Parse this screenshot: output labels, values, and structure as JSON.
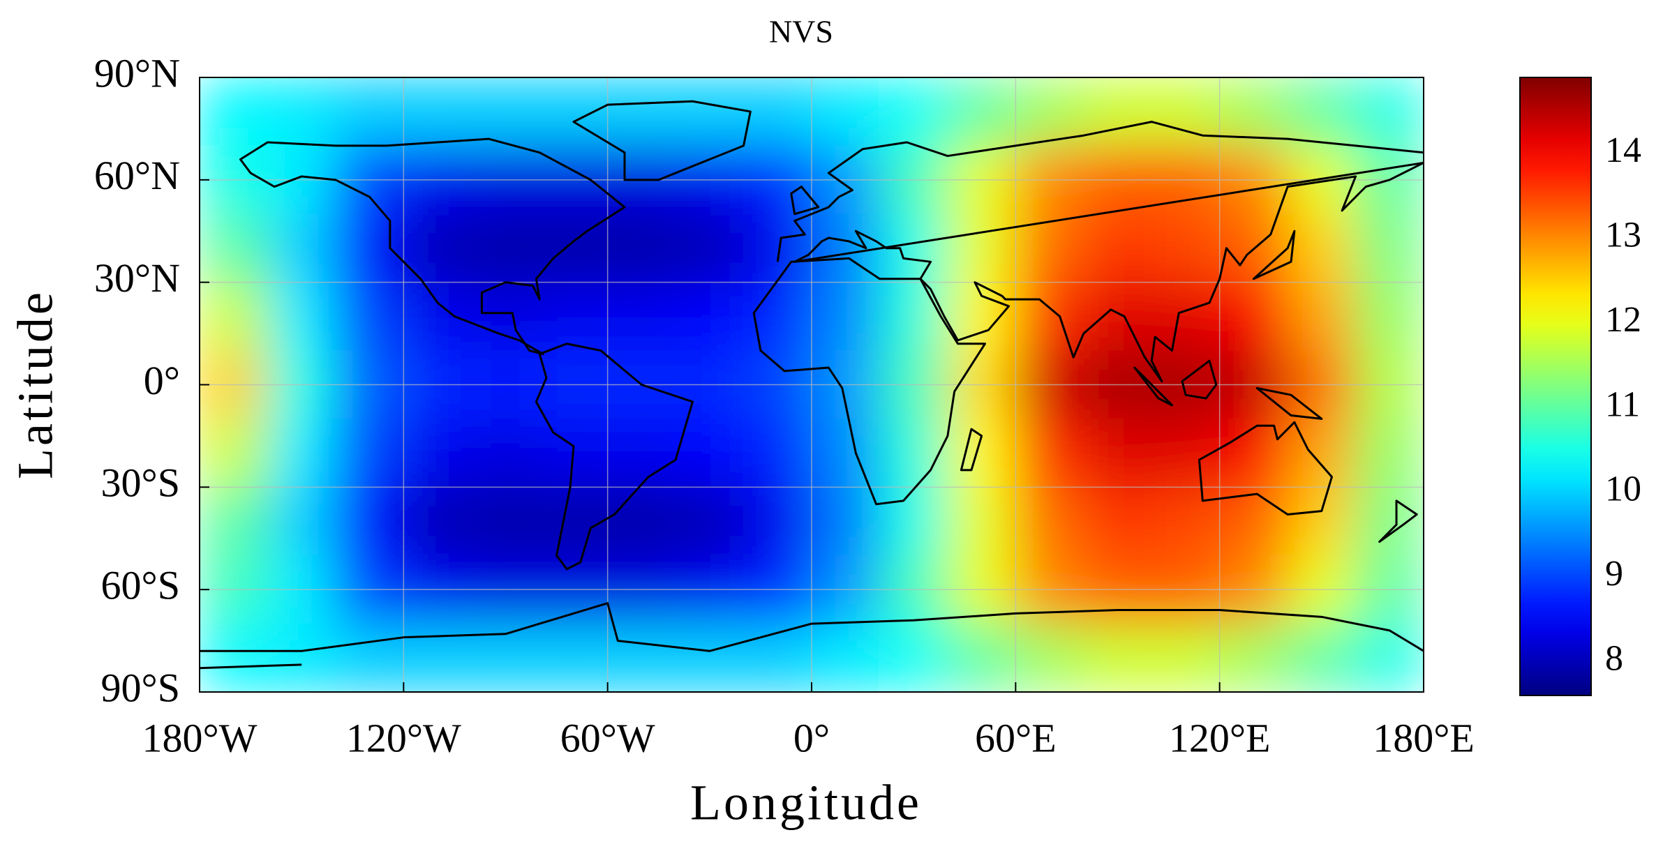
{
  "chart_data": {
    "type": "heatmap",
    "title": "NVS",
    "xlabel": "Longitude",
    "ylabel": "Latitude",
    "x": [
      -170,
      -150,
      -130,
      -110,
      -90,
      -70,
      -50,
      -30,
      -10,
      10,
      30,
      50,
      70,
      90,
      110,
      130,
      150,
      170
    ],
    "y": [
      80,
      60,
      40,
      20,
      0,
      -20,
      -40,
      -60,
      -80
    ],
    "values": [
      [
        10.3,
        10.2,
        10.0,
        10.0,
        10.0,
        10.0,
        10.0,
        10.0,
        10.0,
        10.2,
        10.4,
        11.0,
        11.5,
        11.8,
        11.8,
        11.5,
        11.0,
        10.5
      ],
      [
        10.5,
        10.2,
        9.0,
        8.4,
        8.3,
        8.3,
        8.3,
        8.4,
        8.8,
        9.6,
        10.8,
        12.0,
        13.0,
        13.3,
        13.3,
        13.0,
        12.0,
        11.0
      ],
      [
        11.0,
        10.0,
        8.6,
        8.0,
        7.9,
        7.9,
        7.9,
        8.0,
        8.4,
        9.4,
        10.5,
        12.0,
        13.2,
        13.6,
        13.5,
        13.3,
        12.5,
        11.2
      ],
      [
        11.8,
        10.2,
        9.0,
        8.4,
        8.3,
        8.4,
        8.4,
        8.5,
        8.8,
        9.5,
        10.6,
        12.2,
        13.6,
        14.2,
        14.2,
        14.0,
        12.8,
        11.4
      ],
      [
        12.5,
        10.5,
        9.2,
        8.8,
        8.7,
        8.8,
        8.8,
        8.8,
        9.0,
        9.6,
        10.8,
        12.4,
        14.3,
        14.6,
        14.6,
        14.4,
        13.2,
        11.6
      ],
      [
        11.8,
        10.2,
        9.0,
        8.4,
        8.3,
        8.4,
        8.4,
        8.5,
        8.8,
        9.5,
        10.6,
        12.2,
        13.6,
        14.2,
        14.2,
        14.0,
        12.8,
        11.4
      ],
      [
        11.0,
        10.0,
        8.6,
        8.0,
        7.9,
        7.9,
        7.9,
        8.0,
        8.4,
        9.4,
        10.5,
        12.0,
        13.2,
        13.6,
        13.5,
        13.3,
        12.5,
        11.2
      ],
      [
        10.8,
        10.2,
        9.0,
        8.4,
        8.3,
        8.3,
        8.3,
        8.4,
        8.8,
        9.6,
        10.8,
        12.0,
        13.0,
        13.3,
        13.3,
        13.0,
        12.0,
        11.0
      ],
      [
        10.3,
        10.2,
        10.0,
        10.0,
        10.0,
        10.0,
        10.0,
        10.0,
        10.0,
        10.2,
        10.4,
        11.0,
        11.5,
        11.8,
        11.8,
        11.5,
        11.0,
        10.5
      ]
    ],
    "xlim": [
      -180,
      180
    ],
    "ylim": [
      -90,
      90
    ],
    "xticks": [
      {
        "value": -180,
        "label": "180°W"
      },
      {
        "value": -120,
        "label": "120°W"
      },
      {
        "value": -60,
        "label": "60°W"
      },
      {
        "value": 0,
        "label": "0°"
      },
      {
        "value": 60,
        "label": "60°E"
      },
      {
        "value": 120,
        "label": "120°E"
      },
      {
        "value": 180,
        "label": "180°E"
      }
    ],
    "yticks": [
      {
        "value": 90,
        "label": "90°N"
      },
      {
        "value": 60,
        "label": "60°N"
      },
      {
        "value": 30,
        "label": "30°N"
      },
      {
        "value": 0,
        "label": "0°"
      },
      {
        "value": -30,
        "label": "30°S"
      },
      {
        "value": -60,
        "label": "60°S"
      },
      {
        "value": -90,
        "label": "90°S"
      }
    ],
    "colormap": "jet",
    "clim": [
      7.6,
      14.9
    ],
    "cticks": [
      8,
      9,
      10,
      11,
      12,
      13,
      14
    ],
    "grid": true
  }
}
